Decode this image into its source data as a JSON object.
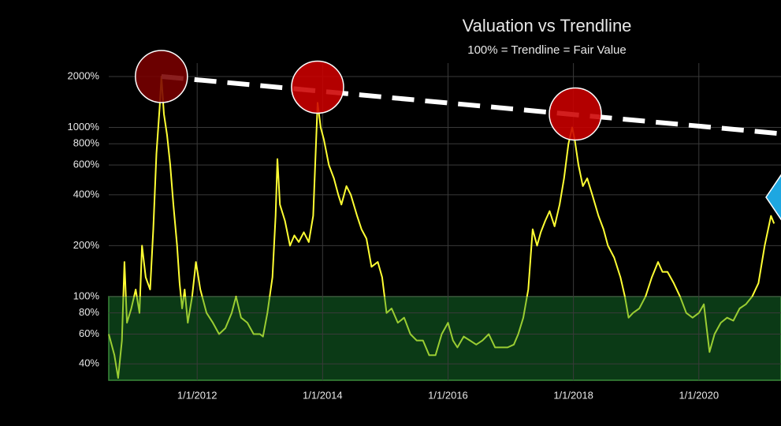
{
  "chart_data": {
    "type": "line",
    "title": "Valuation vs Trendline",
    "subtitle": "100% = Trendline = Fair Value",
    "log_y": true,
    "grid": true,
    "xlim": [
      2010.59,
      2021.31
    ],
    "xticks": [
      {
        "value": 2012,
        "label": "1/1/2012"
      },
      {
        "value": 2014,
        "label": "1/1/2014"
      },
      {
        "value": 2016,
        "label": "1/1/2016"
      },
      {
        "value": 2018,
        "label": "1/1/2018"
      },
      {
        "value": 2020,
        "label": "1/1/2020"
      }
    ],
    "ylim": [
      32,
      2400
    ],
    "yticks": [
      {
        "value": 40,
        "label": "40%"
      },
      {
        "value": 60,
        "label": "60%"
      },
      {
        "value": 80,
        "label": "80%"
      },
      {
        "value": 100,
        "label": "100%"
      },
      {
        "value": 200,
        "label": "200%"
      },
      {
        "value": 400,
        "label": "400%"
      },
      {
        "value": 600,
        "label": "600%"
      },
      {
        "value": 800,
        "label": "800%"
      },
      {
        "value": 1000,
        "label": "1000%"
      },
      {
        "value": 2000,
        "label": "2000%"
      }
    ],
    "band_top": 100,
    "band_color": "#0b3a16",
    "band_edge_color": "#3a8a3a",
    "x": [
      2010.59,
      2010.68,
      2010.74,
      2010.8,
      2010.84,
      2010.88,
      2010.95,
      2011.02,
      2011.08,
      2011.12,
      2011.18,
      2011.25,
      2011.3,
      2011.35,
      2011.4,
      2011.43,
      2011.47,
      2011.52,
      2011.57,
      2011.62,
      2011.68,
      2011.72,
      2011.76,
      2011.8,
      2011.85,
      2011.92,
      2011.98,
      2012.05,
      2012.15,
      2012.25,
      2012.35,
      2012.45,
      2012.55,
      2012.62,
      2012.7,
      2012.8,
      2012.9,
      2013.0,
      2013.05,
      2013.12,
      2013.2,
      2013.25,
      2013.28,
      2013.32,
      2013.4,
      2013.48,
      2013.55,
      2013.62,
      2013.7,
      2013.78,
      2013.85,
      2013.9,
      2013.92,
      2013.97,
      2014.02,
      2014.1,
      2014.18,
      2014.25,
      2014.3,
      2014.38,
      2014.45,
      2014.55,
      2014.62,
      2014.7,
      2014.78,
      2014.88,
      2014.95,
      2015.02,
      2015.1,
      2015.2,
      2015.3,
      2015.4,
      2015.5,
      2015.6,
      2015.7,
      2015.8,
      2015.9,
      2016.0,
      2016.08,
      2016.15,
      2016.25,
      2016.35,
      2016.45,
      2016.55,
      2016.65,
      2016.75,
      2016.85,
      2016.95,
      2017.05,
      2017.12,
      2017.2,
      2017.28,
      2017.35,
      2017.42,
      2017.48,
      2017.55,
      2017.62,
      2017.7,
      2017.78,
      2017.85,
      2017.92,
      2017.98,
      2018.02,
      2018.08,
      2018.15,
      2018.22,
      2018.3,
      2018.4,
      2018.48,
      2018.55,
      2018.65,
      2018.75,
      2018.82,
      2018.88,
      2018.95,
      2019.05,
      2019.15,
      2019.25,
      2019.35,
      2019.42,
      2019.5,
      2019.6,
      2019.7,
      2019.8,
      2019.9,
      2020.0,
      2020.08,
      2020.17,
      2020.25,
      2020.35,
      2020.45,
      2020.55,
      2020.65,
      2020.75,
      2020.85,
      2020.95,
      2021.05,
      2021.15,
      2021.2
    ],
    "series": [
      {
        "color": "#ffff33",
        "below_color": "#9acd32",
        "values": [
          60,
          45,
          33,
          55,
          160,
          70,
          85,
          110,
          80,
          200,
          130,
          110,
          250,
          700,
          1300,
          2000,
          1200,
          900,
          600,
          350,
          200,
          120,
          85,
          110,
          70,
          100,
          160,
          110,
          80,
          70,
          60,
          65,
          80,
          100,
          75,
          70,
          60,
          60,
          58,
          80,
          130,
          300,
          650,
          350,
          280,
          200,
          230,
          210,
          240,
          210,
          300,
          900,
          1400,
          1000,
          850,
          600,
          500,
          400,
          350,
          450,
          400,
          300,
          250,
          220,
          150,
          160,
          130,
          80,
          85,
          70,
          75,
          60,
          55,
          55,
          45,
          45,
          60,
          70,
          55,
          50,
          58,
          55,
          52,
          55,
          60,
          50,
          50,
          50,
          52,
          60,
          75,
          110,
          250,
          200,
          240,
          280,
          320,
          260,
          350,
          500,
          800,
          1000,
          850,
          600,
          450,
          500,
          400,
          300,
          250,
          200,
          170,
          130,
          100,
          75,
          80,
          85,
          100,
          130,
          160,
          140,
          140,
          120,
          100,
          80,
          75,
          80,
          90,
          47,
          60,
          70,
          75,
          72,
          85,
          90,
          100,
          120,
          200,
          300,
          270
        ]
      }
    ],
    "trendline": {
      "color": "#ffffff",
      "x": [
        2011.43,
        2021.31
      ],
      "values": [
        2000,
        918
      ]
    },
    "highlights": [
      {
        "x": 2011.43,
        "value": 2000,
        "color": "#7a0000"
      },
      {
        "x": 2013.92,
        "value": 1730,
        "color": "#cc0000"
      },
      {
        "x": 2018.03,
        "value": 1200,
        "color": "#cc0000"
      }
    ]
  }
}
